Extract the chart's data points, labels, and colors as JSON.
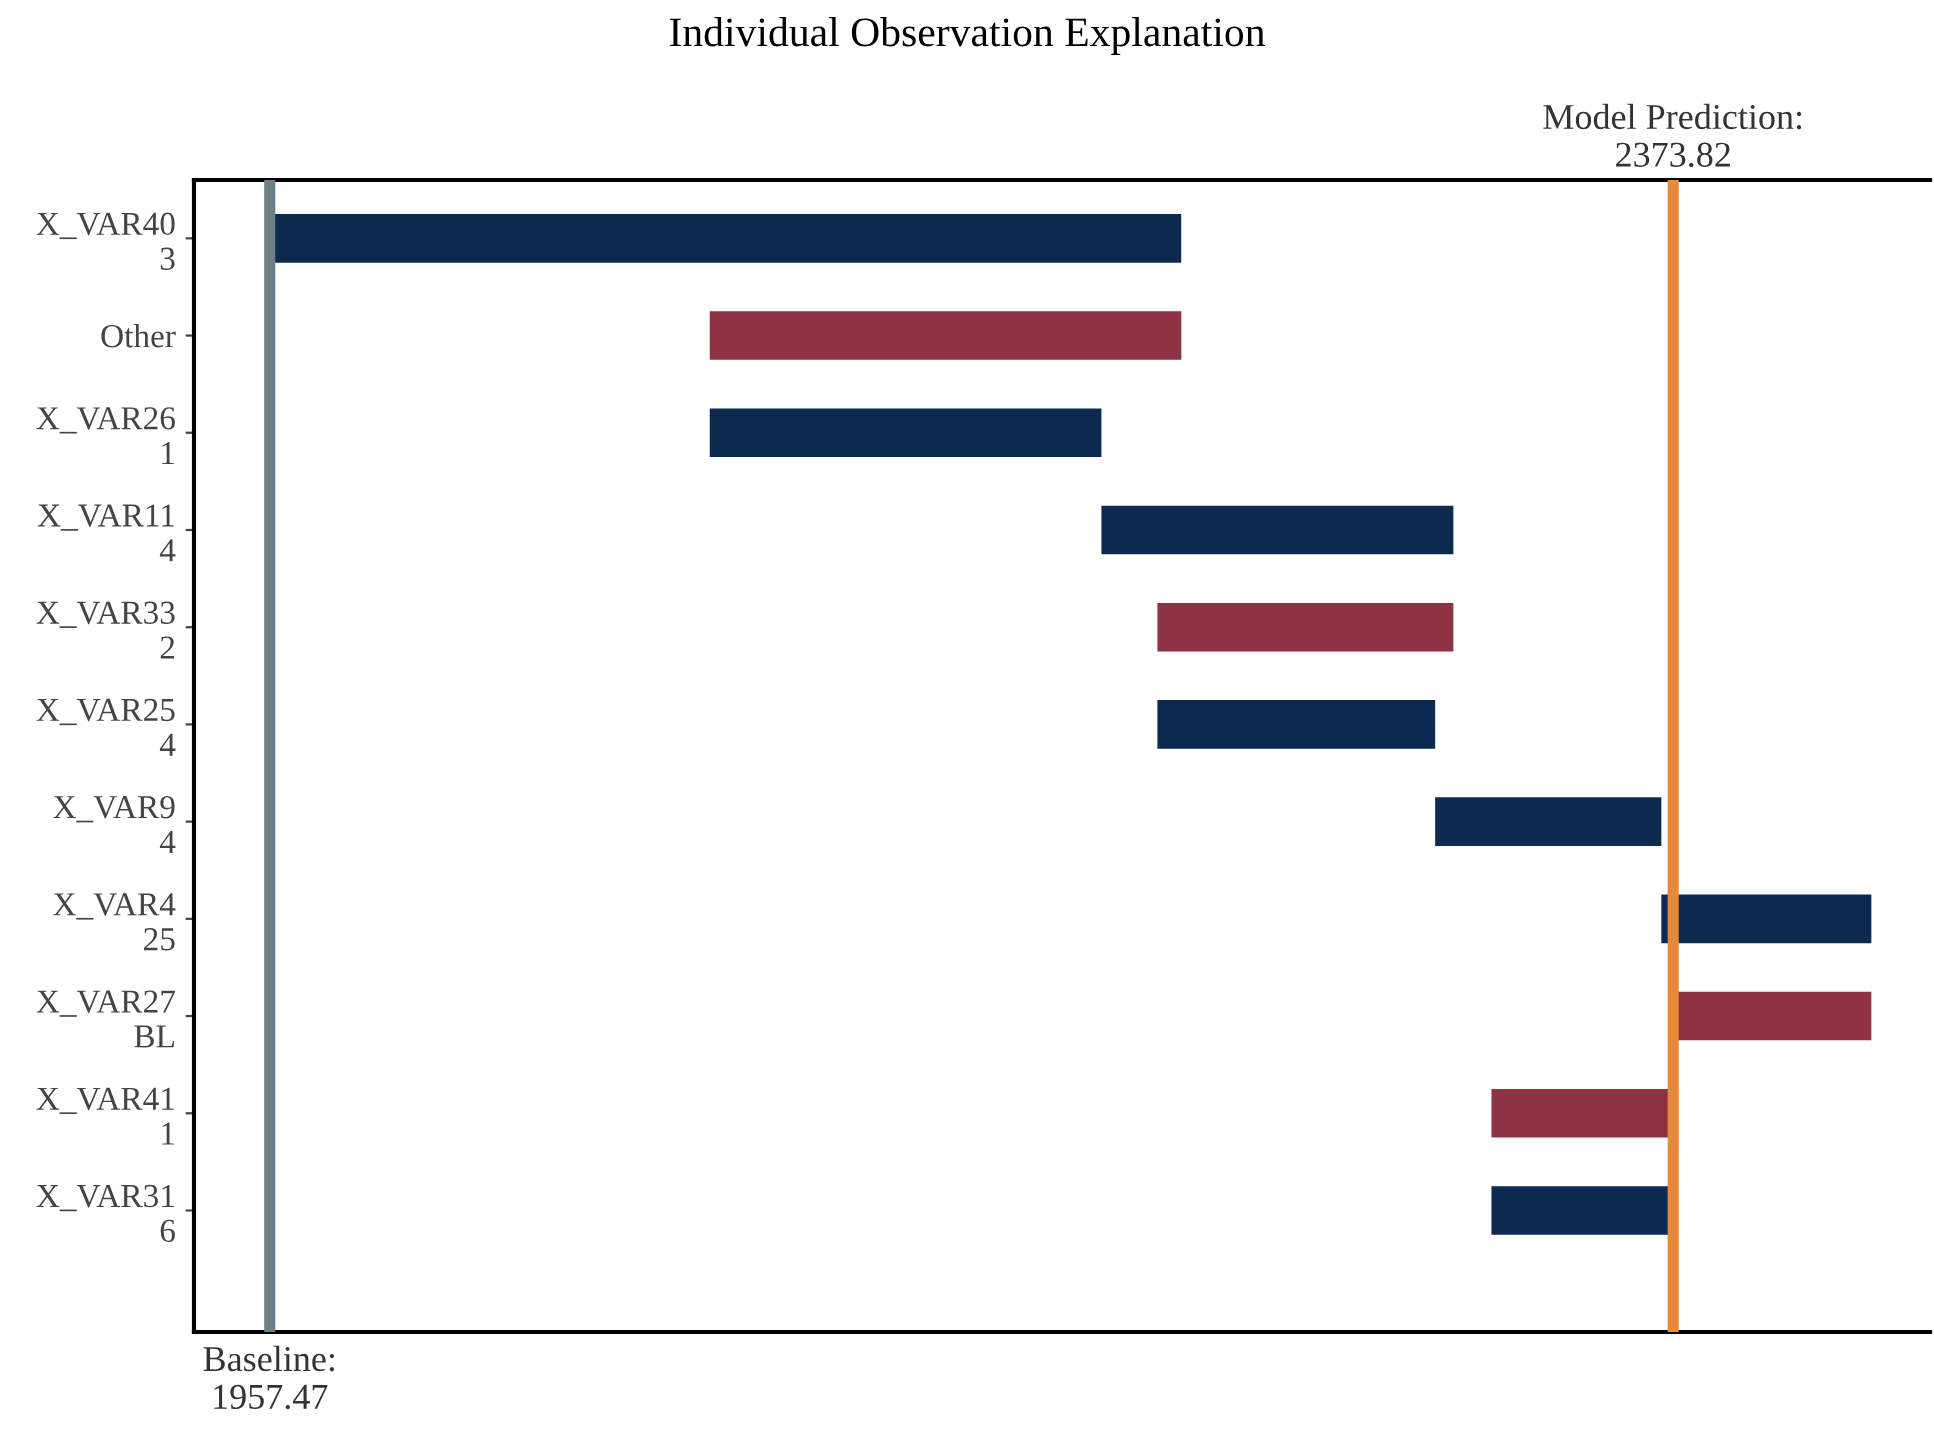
{
  "chart_data": {
    "type": "bar",
    "orientation": "horizontal",
    "title": "Individual Observation Explanation",
    "categories": [
      "X_VAR40\n3",
      "Other",
      "X_VAR26\n1",
      "X_VAR11\n4",
      "X_VAR33\n2",
      "X_VAR25\n4",
      "X_VAR9\n4",
      "X_VAR4\n25",
      "X_VAR27\nBL",
      "X_VAR41\n1",
      "X_VAR31\n6"
    ],
    "base": [
      1957.47,
      2227.9,
      2088.0,
      2204.2,
      2308.6,
      2220.8,
      2303.2,
      2370.3,
      2432.6,
      2373.8,
      2319.9
    ],
    "values": [
      270.4,
      -139.9,
      116.2,
      104.4,
      -87.8,
      82.4,
      67.1,
      62.3,
      -58.8,
      -53.9,
      53.9
    ],
    "colors": [
      "#0c2a50",
      "#8e3244",
      "#0c2a50",
      "#0c2a50",
      "#8e3244",
      "#0c2a50",
      "#0c2a50",
      "#0c2a50",
      "#8e3244",
      "#8e3244",
      "#0c2a50"
    ],
    "xlim": [
      1935,
      2450
    ],
    "ref_lines": [
      {
        "axis": "x",
        "value": 1957.47,
        "label": "Baseline:\n1957.47",
        "color": "#6b7f85"
      },
      {
        "axis": "x",
        "value": 2373.82,
        "label": "Model Prediction:\n2373.82",
        "color": "#e8893a"
      }
    ],
    "tick_labels": "y",
    "grid": false,
    "legend": false
  }
}
